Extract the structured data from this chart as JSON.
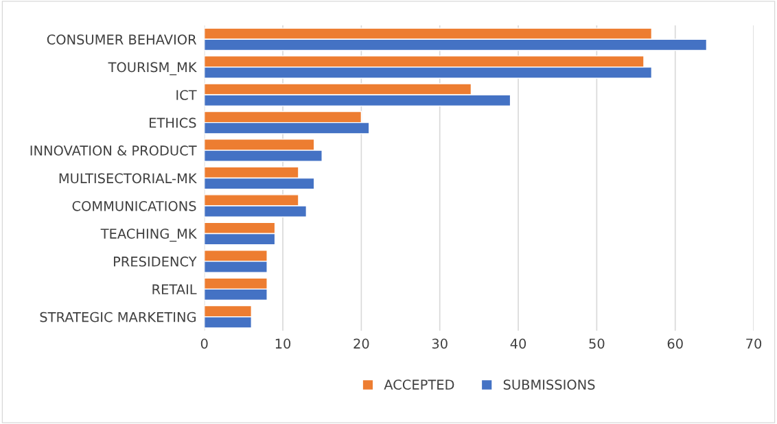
{
  "chart_data": {
    "type": "bar",
    "orientation": "horizontal",
    "categories": [
      "CONSUMER BEHAVIOR",
      "TOURISM_MK",
      "ICT",
      "ETHICS",
      "INNOVATION & PRODUCT",
      "MULTISECTORIAL-MK",
      "COMMUNICATIONS",
      "TEACHING_MK",
      "PRESIDENCY",
      "RETAIL",
      "STRATEGIC MARKETING"
    ],
    "series": [
      {
        "name": "ACCEPTED",
        "color": "#ed7d31",
        "values": [
          57,
          56,
          34,
          20,
          14,
          12,
          12,
          9,
          8,
          8,
          6
        ]
      },
      {
        "name": "SUBMISSIONS",
        "color": "#4472c4",
        "values": [
          64,
          57,
          39,
          21,
          15,
          14,
          13,
          9,
          8,
          8,
          6
        ]
      }
    ],
    "xlim": [
      0,
      70
    ],
    "xticks": [
      0,
      10,
      20,
      30,
      40,
      50,
      60,
      70
    ],
    "grid": "x",
    "legend": "bottom"
  }
}
